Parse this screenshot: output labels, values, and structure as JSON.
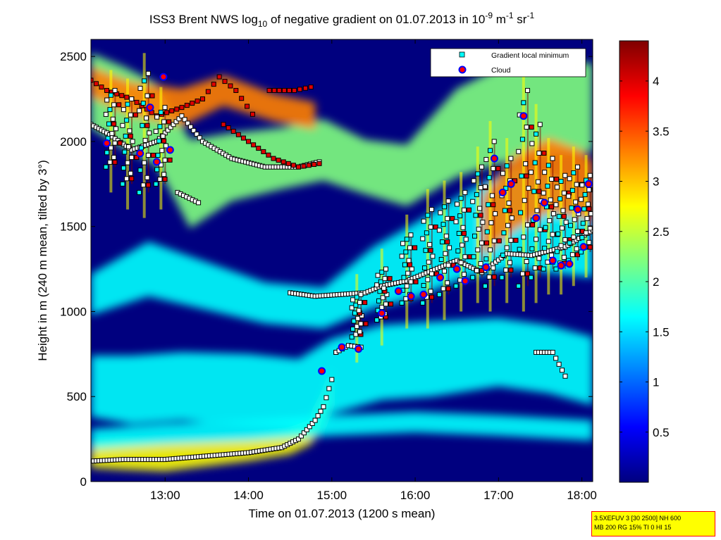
{
  "chart_data": {
    "type": "heatmap",
    "title": {
      "parts": [
        "ISS3 Brent NWS log",
        "10",
        " of negative gradient on 01.07.2013 in 10",
        "-9",
        " m",
        "-1",
        " sr",
        "-1"
      ]
    },
    "xlabel": "Time on 01.07.2013 (1200 s mean)",
    "ylabel": "Height in m (240 m mean, tilted by 3°)",
    "x_ticks": [
      "13:00",
      "14:00",
      "15:00",
      "16:00",
      "17:00",
      "18:00"
    ],
    "x_tick_hours": [
      13,
      14,
      15,
      16,
      17,
      18
    ],
    "xlim_hours": [
      12.11,
      18.13
    ],
    "y_ticks": [
      0,
      500,
      1000,
      1500,
      2000,
      2500
    ],
    "ylim": [
      0,
      2600
    ],
    "colorbar": {
      "ticks": [
        0.5,
        1,
        1.5,
        2,
        2.5,
        3,
        3.5,
        4
      ],
      "tick_labels": [
        "0.5",
        "1",
        "1.5",
        "2",
        "2.5",
        "3",
        "3.5",
        "4"
      ],
      "range": [
        0,
        4.4
      ],
      "colormap": [
        "#00007f",
        "#0000ff",
        "#007fff",
        "#00ffff",
        "#7fff7f",
        "#ffff00",
        "#ff7f00",
        "#ff0000",
        "#7f0000"
      ]
    },
    "grid": false,
    "legend": {
      "placement": "top-right",
      "entries": [
        {
          "label": "Gradient local minimum",
          "marker": "square",
          "color": "#00ffff"
        },
        {
          "label": "Cloud",
          "marker": "circle",
          "color": "#ff0000",
          "edge": "#0000ff"
        }
      ]
    },
    "background": "#00007f",
    "bands": [
      {
        "name": "boundary-layer",
        "points": [
          [
            12.11,
            160,
            80
          ],
          [
            12.5,
            160,
            90
          ],
          [
            13.0,
            150,
            90
          ],
          [
            13.5,
            170,
            80
          ],
          [
            14.0,
            190,
            70
          ],
          [
            14.5,
            230,
            70
          ],
          [
            14.75,
            300,
            80
          ],
          [
            14.9,
            420,
            100
          ],
          [
            15.0,
            560,
            110
          ]
        ],
        "value": 2.6
      },
      {
        "name": "low-haze",
        "points": [
          [
            12.11,
            560,
            180
          ],
          [
            12.6,
            540,
            200
          ],
          [
            13.2,
            560,
            200
          ],
          [
            14.0,
            540,
            210
          ],
          [
            14.6,
            520,
            200
          ],
          [
            15.0,
            620,
            220
          ],
          [
            15.6,
            700,
            220
          ],
          [
            16.2,
            720,
            220
          ],
          [
            17.0,
            760,
            200
          ],
          [
            17.6,
            720,
            200
          ],
          [
            18.13,
            650,
            200
          ]
        ],
        "value": 1.7
      },
      {
        "name": "surface-layer",
        "points": [
          [
            12.11,
            250,
            60
          ],
          [
            13.0,
            280,
            60
          ],
          [
            14.0,
            300,
            60
          ],
          [
            15.0,
            330,
            60
          ],
          [
            16.0,
            350,
            60
          ],
          [
            17.0,
            330,
            60
          ],
          [
            18.13,
            300,
            60
          ]
        ],
        "value": 1.5
      },
      {
        "name": "mid-layer",
        "points": [
          [
            12.11,
            1100,
            120
          ],
          [
            12.8,
            1250,
            160
          ],
          [
            13.5,
            1150,
            140
          ],
          [
            14.2,
            1050,
            120
          ],
          [
            14.9,
            1020,
            120
          ],
          [
            15.5,
            1200,
            180
          ],
          [
            16.0,
            1300,
            220
          ],
          [
            16.6,
            1450,
            250
          ],
          [
            17.2,
            1550,
            300
          ],
          [
            17.8,
            1500,
            280
          ],
          [
            18.13,
            1450,
            250
          ]
        ],
        "value": 1.9
      },
      {
        "name": "upper-layer",
        "points": [
          [
            12.11,
            2300,
            220
          ],
          [
            12.5,
            2200,
            240
          ],
          [
            12.9,
            2100,
            240
          ],
          [
            13.3,
            1750,
            260
          ],
          [
            13.8,
            1850,
            200
          ],
          [
            14.4,
            1900,
            180
          ],
          [
            14.9,
            1950,
            180
          ],
          [
            15.4,
            1850,
            160
          ],
          [
            15.9,
            1800,
            180
          ],
          [
            16.5,
            2050,
            260
          ],
          [
            17.0,
            2150,
            280
          ],
          [
            17.5,
            2200,
            280
          ],
          [
            18.13,
            2200,
            260
          ]
        ],
        "value": 2.4
      },
      {
        "name": "upper-core",
        "points": [
          [
            12.11,
            2350,
            90
          ],
          [
            12.6,
            2250,
            100
          ],
          [
            13.2,
            2200,
            110
          ],
          [
            13.7,
            2300,
            90
          ],
          [
            14.3,
            2200,
            80
          ],
          [
            14.8,
            2150,
            80
          ]
        ],
        "value": 3.1
      },
      {
        "name": "convective-core",
        "points": [
          [
            16.8,
            1500,
            180
          ],
          [
            17.2,
            1700,
            220
          ],
          [
            17.6,
            1800,
            220
          ],
          [
            18.0,
            1750,
            200
          ],
          [
            18.13,
            1700,
            180
          ]
        ],
        "value": 3.2
      }
    ],
    "minimum_tracks": [
      [
        [
          12.11,
          120
        ],
        [
          12.5,
          130
        ],
        [
          13.0,
          130
        ],
        [
          13.5,
          150
        ],
        [
          14.0,
          170
        ],
        [
          14.4,
          200
        ],
        [
          14.6,
          250
        ],
        [
          14.8,
          360
        ],
        [
          14.9,
          440
        ],
        [
          15.0,
          600
        ],
        [
          15.05,
          760
        ]
      ],
      [
        [
          12.11,
          2100
        ],
        [
          12.3,
          2050
        ],
        [
          12.6,
          1950
        ],
        [
          12.9,
          2000
        ],
        [
          13.2,
          2150
        ],
        [
          13.45,
          2000
        ],
        [
          13.8,
          1900
        ],
        [
          14.2,
          1850
        ],
        [
          14.6,
          1850
        ],
        [
          14.85,
          1880
        ]
      ],
      [
        [
          13.15,
          1700
        ],
        [
          13.4,
          1640
        ]
      ],
      [
        [
          14.5,
          1110
        ],
        [
          14.8,
          1090
        ],
        [
          15.1,
          1100
        ],
        [
          15.4,
          1110
        ],
        [
          15.6,
          1150
        ],
        [
          15.9,
          1180
        ],
        [
          16.2,
          1240
        ],
        [
          16.5,
          1300
        ],
        [
          16.8,
          1230
        ],
        [
          17.1,
          1340
        ],
        [
          17.4,
          1330
        ],
        [
          17.8,
          1380
        ],
        [
          18.13,
          1480
        ]
      ],
      [
        [
          15.05,
          760
        ],
        [
          15.2,
          800
        ],
        [
          15.35,
          790
        ]
      ],
      [
        [
          17.45,
          760
        ],
        [
          17.65,
          760
        ],
        [
          17.8,
          620
        ]
      ]
    ],
    "maximum_tracks": [
      [
        [
          12.11,
          2360
        ],
        [
          12.3,
          2300
        ],
        [
          12.6,
          2250
        ],
        [
          12.9,
          2150
        ],
        [
          13.2,
          2200
        ],
        [
          13.45,
          2250
        ],
        [
          13.65,
          2380
        ],
        [
          13.85,
          2300
        ],
        [
          14.05,
          2160
        ]
      ],
      [
        [
          14.25,
          2300
        ],
        [
          14.55,
          2300
        ],
        [
          14.75,
          2320
        ]
      ],
      [
        [
          13.7,
          2100
        ],
        [
          14.0,
          2000
        ],
        [
          14.3,
          1900
        ],
        [
          14.6,
          1850
        ],
        [
          14.85,
          1870
        ]
      ]
    ],
    "scatter_columns": [
      {
        "x": 12.35,
        "ymin": 1850,
        "ymax": 2300
      },
      {
        "x": 12.55,
        "ymin": 1750,
        "ymax": 2250
      },
      {
        "x": 12.75,
        "ymin": 1700,
        "ymax": 2400
      },
      {
        "x": 12.95,
        "ymin": 1750,
        "ymax": 2200
      },
      {
        "x": 15.3,
        "ymin": 850,
        "ymax": 1100
      },
      {
        "x": 15.6,
        "ymin": 950,
        "ymax": 1250
      },
      {
        "x": 15.9,
        "ymin": 1050,
        "ymax": 1450
      },
      {
        "x": 16.15,
        "ymin": 1050,
        "ymax": 1600
      },
      {
        "x": 16.35,
        "ymin": 1100,
        "ymax": 1650
      },
      {
        "x": 16.55,
        "ymin": 1150,
        "ymax": 1700
      },
      {
        "x": 16.75,
        "ymin": 1200,
        "ymax": 1850
      },
      {
        "x": 16.9,
        "ymin": 1150,
        "ymax": 2000
      },
      {
        "x": 17.1,
        "ymin": 1200,
        "ymax": 1900
      },
      {
        "x": 17.3,
        "ymin": 1150,
        "ymax": 2300
      },
      {
        "x": 17.45,
        "ymin": 1200,
        "ymax": 2100
      },
      {
        "x": 17.6,
        "ymin": 1250,
        "ymax": 1900
      },
      {
        "x": 17.75,
        "ymin": 1250,
        "ymax": 1800
      },
      {
        "x": 17.9,
        "ymin": 1300,
        "ymax": 1850
      },
      {
        "x": 18.05,
        "ymin": 1350,
        "ymax": 1800
      }
    ],
    "clouds": [
      [
        12.3,
        1990
      ],
      [
        12.7,
        1930
      ],
      [
        12.82,
        2200
      ],
      [
        12.9,
        1880
      ],
      [
        12.98,
        2380
      ],
      [
        13.06,
        1950
      ],
      [
        14.88,
        650
      ],
      [
        15.12,
        790
      ],
      [
        15.32,
        780
      ],
      [
        15.6,
        990
      ],
      [
        15.8,
        1120
      ],
      [
        15.95,
        1090
      ],
      [
        16.1,
        1100
      ],
      [
        16.3,
        1200
      ],
      [
        16.5,
        1250
      ],
      [
        16.6,
        1180
      ],
      [
        16.85,
        1260
      ],
      [
        16.95,
        1900
      ],
      [
        17.05,
        1700
      ],
      [
        17.15,
        1750
      ],
      [
        17.3,
        2150
      ],
      [
        17.45,
        1550
      ],
      [
        17.55,
        1640
      ],
      [
        17.65,
        1300
      ],
      [
        17.75,
        1270
      ],
      [
        17.85,
        1280
      ],
      [
        17.95,
        1600
      ],
      [
        18.02,
        1380
      ],
      [
        18.08,
        1750
      ]
    ]
  },
  "info_box": {
    "line1": "3.5XEFUV 3 [30 2500] NH 600",
    "line2": "MB 200 RG 15% TI 0 HI 15"
  }
}
